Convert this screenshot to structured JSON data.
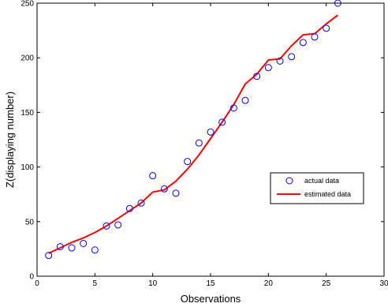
{
  "chart_data": {
    "type": "scatter",
    "title": "",
    "xlabel": "Observations",
    "ylabel": "Z(displaying number)",
    "xlim": [
      0,
      30
    ],
    "ylim": [
      0,
      250
    ],
    "xticks": [
      0,
      5,
      10,
      15,
      20,
      25,
      30
    ],
    "yticks": [
      0,
      50,
      100,
      150,
      200,
      250
    ],
    "grid": false,
    "legend_position": "right",
    "series": [
      {
        "name": "actual data",
        "kind": "scatter",
        "marker": "circle",
        "color": "#0000ff",
        "x": [
          1,
          2,
          3,
          4,
          5,
          6,
          7,
          8,
          9,
          10,
          11,
          12,
          13,
          14,
          15,
          16,
          17,
          18,
          19,
          20,
          21,
          22,
          23,
          24,
          25,
          26
        ],
        "y": [
          19,
          27,
          26,
          30,
          24,
          46,
          47,
          62,
          67,
          92,
          80,
          76,
          105,
          122,
          132,
          141,
          154,
          161,
          183,
          191,
          197,
          201,
          214,
          219,
          227,
          250
        ]
      },
      {
        "name": "estimated data",
        "kind": "line",
        "color": "#ff0000",
        "x": [
          1,
          2,
          3,
          4,
          5,
          6,
          7,
          8,
          9,
          10,
          11,
          12,
          13,
          14,
          15,
          16,
          17,
          18,
          19,
          20,
          21,
          22,
          23,
          24,
          25,
          26
        ],
        "y": [
          21,
          26,
          31,
          35,
          40,
          46,
          53,
          60,
          67,
          77,
          79,
          87,
          98,
          111,
          126,
          141,
          157,
          176,
          185,
          198,
          199,
          211,
          221,
          222,
          231,
          239
        ]
      }
    ]
  }
}
